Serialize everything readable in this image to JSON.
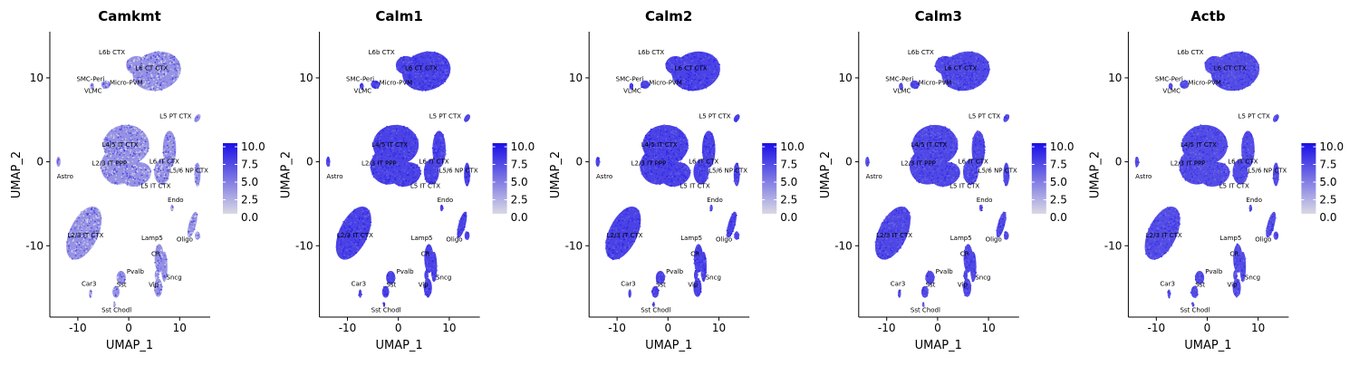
{
  "chart_data": [
    {
      "type": "scatter",
      "title": "Camkmt",
      "xlabel": "UMAP_1",
      "ylabel": "UMAP_2",
      "xlim": [
        -15.5,
        16
      ],
      "ylim": [
        -18.5,
        15.5
      ],
      "xticks": [
        -10,
        0,
        10
      ],
      "yticks": [
        10,
        0,
        -10
      ],
      "xtick_labels": [
        "-10",
        "0",
        "10"
      ],
      "ytick_labels": [
        "10",
        "0",
        "-10"
      ],
      "colorbar": {
        "min": 0,
        "max": 10,
        "ticks": [
          "10.0",
          "7.5",
          "5.0",
          "2.5",
          "0.0"
        ],
        "low_color": "#d9d9e3",
        "high_color": "#1a0fe6"
      },
      "expression_level": 0.35,
      "cluster_labels": [
        "L6b CTX",
        "L6 CT CTX",
        "SMC-Peri",
        "Micro-PVM",
        "VLMC",
        "L5 PT CTX",
        "L4/5 IT CTX",
        "L2/3 IT PPP",
        "L6 IT CTX",
        "L5/6 NP CTX",
        "L5 IT CTX",
        "Astro",
        "Endo",
        "Oligo",
        "L2/3 IT CTX",
        "Lamp5",
        "CR",
        "Pvalb",
        "Sncg",
        "Car3",
        "Sst",
        "Vip",
        "Sst Chodl"
      ]
    },
    {
      "type": "scatter",
      "title": "Calm1",
      "xlabel": "UMAP_1",
      "ylabel": "UMAP_2",
      "xlim": [
        -15.5,
        16
      ],
      "ylim": [
        -18.5,
        15.5
      ],
      "xticks": [
        -10,
        0,
        10
      ],
      "yticks": [
        10,
        0,
        -10
      ],
      "xtick_labels": [
        "-10",
        "0",
        "10"
      ],
      "ytick_labels": [
        "10",
        "0",
        "-10"
      ],
      "colorbar": {
        "min": 0,
        "max": 10,
        "ticks": [
          "10.0",
          "7.5",
          "5.0",
          "2.5",
          "0.0"
        ],
        "low_color": "#d9d9e3",
        "high_color": "#1a0fe6"
      },
      "expression_level": 0.75,
      "cluster_labels": [
        "L6b CTX",
        "L6 CT CTX",
        "SMC-Peri",
        "Micro-PVM",
        "VLMC",
        "L5 PT CTX",
        "L4/5 IT CTX",
        "L2/3 IT PPP",
        "L6 IT CTX",
        "L5/6 NP CTX",
        "L5 IT CTX",
        "Astro",
        "Endo",
        "Oligo",
        "L2/3 IT CTX",
        "Lamp5",
        "CR",
        "Pvalb",
        "Sncg",
        "Car3",
        "Sst",
        "Vip",
        "Sst Chodl"
      ]
    },
    {
      "type": "scatter",
      "title": "Calm2",
      "xlabel": "UMAP_1",
      "ylabel": "UMAP_2",
      "xlim": [
        -15.5,
        16
      ],
      "ylim": [
        -18.5,
        15.5
      ],
      "xticks": [
        -10,
        0,
        10
      ],
      "yticks": [
        10,
        0,
        -10
      ],
      "xtick_labels": [
        "-10",
        "0",
        "10"
      ],
      "ytick_labels": [
        "10",
        "0",
        "-10"
      ],
      "colorbar": {
        "min": 0,
        "max": 10,
        "ticks": [
          "10.0",
          "7.5",
          "5.0",
          "2.5",
          "0.0"
        ],
        "low_color": "#d9d9e3",
        "high_color": "#1a0fe6"
      },
      "expression_level": 0.75,
      "cluster_labels": [
        "L6b CTX",
        "L6 CT CTX",
        "SMC-Peri",
        "Micro-PVM",
        "VLMC",
        "L5 PT CTX",
        "L4/5 IT CTX",
        "L2/3 IT PPP",
        "L6 IT CTX",
        "L5/6 NP CTX",
        "L5 IT CTX",
        "Astro",
        "Endo",
        "Oligo",
        "L2/3 IT CTX",
        "Lamp5",
        "CR",
        "Pvalb",
        "Sncg",
        "Car3",
        "Sst",
        "Vip",
        "Sst Chodl"
      ]
    },
    {
      "type": "scatter",
      "title": "Calm3",
      "xlabel": "UMAP_1",
      "ylabel": "UMAP_2",
      "xlim": [
        -15.5,
        16
      ],
      "ylim": [
        -18.5,
        15.5
      ],
      "xticks": [
        -10,
        0,
        10
      ],
      "yticks": [
        10,
        0,
        -10
      ],
      "xtick_labels": [
        "-10",
        "0",
        "10"
      ],
      "ytick_labels": [
        "10",
        "0",
        "-10"
      ],
      "colorbar": {
        "min": 0,
        "max": 10,
        "ticks": [
          "10.0",
          "7.5",
          "5.0",
          "2.5",
          "0.0"
        ],
        "low_color": "#d9d9e3",
        "high_color": "#1a0fe6"
      },
      "expression_level": 0.72,
      "cluster_labels": [
        "L6b CTX",
        "L6 CT CTX",
        "SMC-Peri",
        "Micro-PVM",
        "VLMC",
        "L5 PT CTX",
        "L4/5 IT CTX",
        "L2/3 IT PPP",
        "L6 IT CTX",
        "L5/6 NP CTX",
        "L5 IT CTX",
        "Astro",
        "Endo",
        "Oligo",
        "L2/3 IT CTX",
        "Lamp5",
        "CR",
        "Pvalb",
        "Sncg",
        "Car3",
        "Sst",
        "Vip",
        "Sst Chodl"
      ]
    },
    {
      "type": "scatter",
      "title": "Actb",
      "xlabel": "UMAP_1",
      "ylabel": "UMAP_2",
      "xlim": [
        -15.5,
        16
      ],
      "ylim": [
        -18.5,
        15.5
      ],
      "xticks": [
        -10,
        0,
        10
      ],
      "yticks": [
        10,
        0,
        -10
      ],
      "xtick_labels": [
        "-10",
        "0",
        "10"
      ],
      "ytick_labels": [
        "10",
        "0",
        "-10"
      ],
      "colorbar": {
        "min": 0,
        "max": 10,
        "ticks": [
          "10.0",
          "7.5",
          "5.0",
          "2.5",
          "0.0"
        ],
        "low_color": "#d9d9e3",
        "high_color": "#1a0fe6"
      },
      "expression_level": 0.7,
      "cluster_labels": [
        "L6b CTX",
        "L6 CT CTX",
        "SMC-Peri",
        "Micro-PVM",
        "VLMC",
        "L5 PT CTX",
        "L4/5 IT CTX",
        "L2/3 IT PPP",
        "L6 IT CTX",
        "L5/6 NP CTX",
        "L5 IT CTX",
        "Astro",
        "Endo",
        "Oligo",
        "L2/3 IT CTX",
        "Lamp5",
        "CR",
        "Pvalb",
        "Sncg",
        "Car3",
        "Sst",
        "Vip",
        "Sst Chodl"
      ]
    }
  ]
}
